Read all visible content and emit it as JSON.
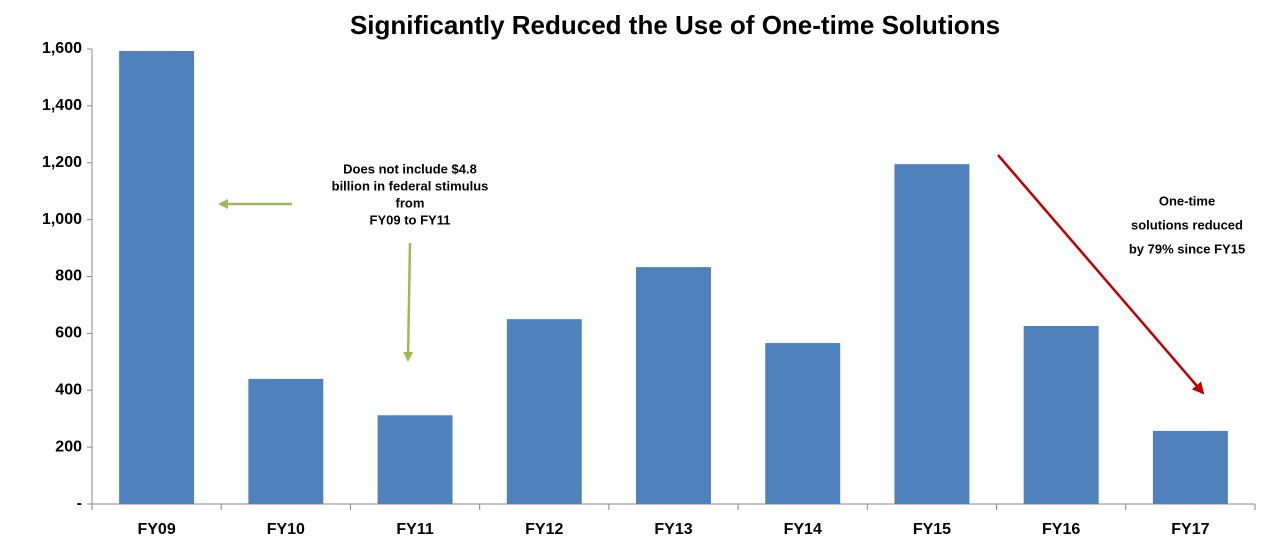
{
  "chart_data": {
    "type": "bar",
    "title": "Significantly Reduced the Use of One-time Solutions",
    "categories": [
      "FY09",
      "FY10",
      "FY11",
      "FY12",
      "FY13",
      "FY14",
      "FY15",
      "FY16",
      "FY17"
    ],
    "values": [
      1593,
      440,
      312,
      650,
      833,
      566,
      1195,
      626,
      257
    ],
    "color": "#4f81bd",
    "ylim": [
      0,
      1600
    ],
    "yticks": [
      {
        "value": 0,
        "label": "-"
      },
      200,
      400,
      600,
      800,
      {
        "value": 1000,
        "label": "1,000"
      },
      {
        "value": 1200,
        "label": "1,200"
      },
      {
        "value": 1400,
        "label": "1,400"
      },
      {
        "value": 1600,
        "label": "1,600"
      }
    ],
    "grid": false,
    "annotations": [
      {
        "lines": [
          "Does not include $4.8",
          "billion in federal stimulus",
          "from",
          "FY09 to FY11"
        ]
      },
      {
        "lines": [
          "One-time",
          "solutions reduced",
          "by 79% since  FY15"
        ]
      }
    ]
  }
}
